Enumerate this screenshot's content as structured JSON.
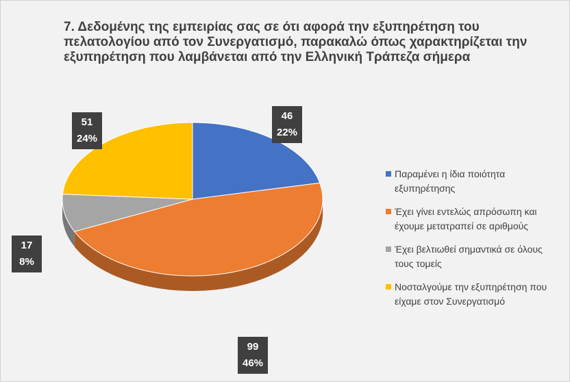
{
  "chart_data": {
    "type": "pie",
    "title": "7. Δεδομένης της εμπειρίας σας σε ότι αφορά την εξυπηρέτηση του πελατολογίου από τον Συνεργατισμό, παρακαλώ όπως χαρακτηρίζεται την εξυπηρέτηση που λαμβάνεται από την Ελληνική Τράπεζα σήμερα",
    "categories": [
      "Παραμένει η ίδια ποιότητα εξυπηρέτησης",
      "Έχει γίνει εντελώς απρόσωπη και έχουμε μετατραπεί σε αριθμούς",
      "Έχει βελτιωθεί σημαντικά σε όλους τους τομείς",
      "Νοσταλγούμε την εξυπηρέτηση που είχαμε στον Συνεργατισμό"
    ],
    "values": [
      46,
      99,
      17,
      51
    ],
    "percent_labels": [
      "22%",
      "46%",
      "8%",
      "24%"
    ],
    "colors": [
      "#4472c4",
      "#ed7d31",
      "#a5a5a5",
      "#ffc000"
    ],
    "legend": "right"
  }
}
